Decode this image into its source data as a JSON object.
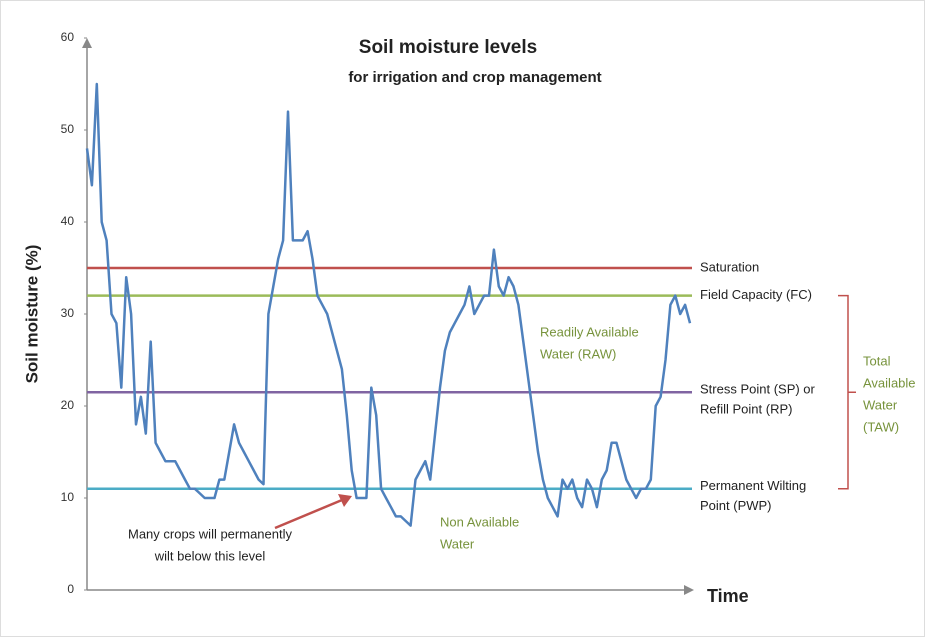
{
  "chart_data": {
    "type": "line",
    "title": "Soil moisture levels",
    "subtitle": "for irrigation and crop management",
    "y_label": "Soil moisture (%)",
    "x_label": "Time",
    "ylim": [
      0,
      60
    ],
    "yticks": [
      0,
      10,
      20,
      30,
      40,
      50,
      60
    ],
    "color": "#4f81bd",
    "values": [
      48,
      44,
      55,
      40,
      38,
      30,
      29,
      22,
      34,
      30,
      18,
      21,
      17,
      27,
      16,
      15,
      14,
      14,
      14,
      13,
      12,
      11,
      11,
      10.5,
      10,
      10,
      10,
      12,
      12,
      15,
      18,
      16,
      15,
      14,
      13,
      12,
      11.5,
      30,
      33,
      36,
      38,
      52,
      38,
      38,
      38,
      39,
      36,
      32,
      31,
      30,
      28,
      26,
      24,
      19,
      13,
      10,
      10,
      10,
      22,
      19,
      11,
      10,
      9,
      8,
      8,
      7.5,
      7,
      12,
      13,
      14,
      12,
      17,
      22,
      26,
      28,
      29,
      30,
      31,
      33,
      30,
      31,
      32,
      32,
      37,
      33,
      32,
      34,
      33,
      31,
      27,
      23,
      19,
      15,
      12,
      10,
      9,
      8,
      12,
      11,
      12,
      10,
      9,
      12,
      11,
      9,
      12,
      13,
      16,
      16,
      14,
      12,
      11,
      10,
      11,
      11,
      12,
      20,
      21,
      25,
      31,
      32,
      30,
      31,
      29
    ],
    "reference_lines": [
      {
        "label": [
          "Saturation"
        ],
        "value": 35,
        "color": "#c0504d"
      },
      {
        "label": [
          "Field Capacity (FC)"
        ],
        "value": 32,
        "color": "#9bbb59"
      },
      {
        "label": [
          "Stress Point (SP) or",
          "Refill Point (RP)"
        ],
        "value": 21.5,
        "color": "#8064a2"
      },
      {
        "label": [
          "Permanent Wilting",
          "Point (PWP)"
        ],
        "value": 11,
        "color": "#4bacc6"
      }
    ],
    "annotations": {
      "raw": [
        "Readily Available",
        "Water (RAW)"
      ],
      "non_available": [
        "Non Available",
        "Water"
      ],
      "wilt": [
        "Many crops will permanently",
        "wilt below this level"
      ],
      "taw": [
        "Total",
        "Available",
        "Water",
        "(TAW)"
      ]
    }
  }
}
